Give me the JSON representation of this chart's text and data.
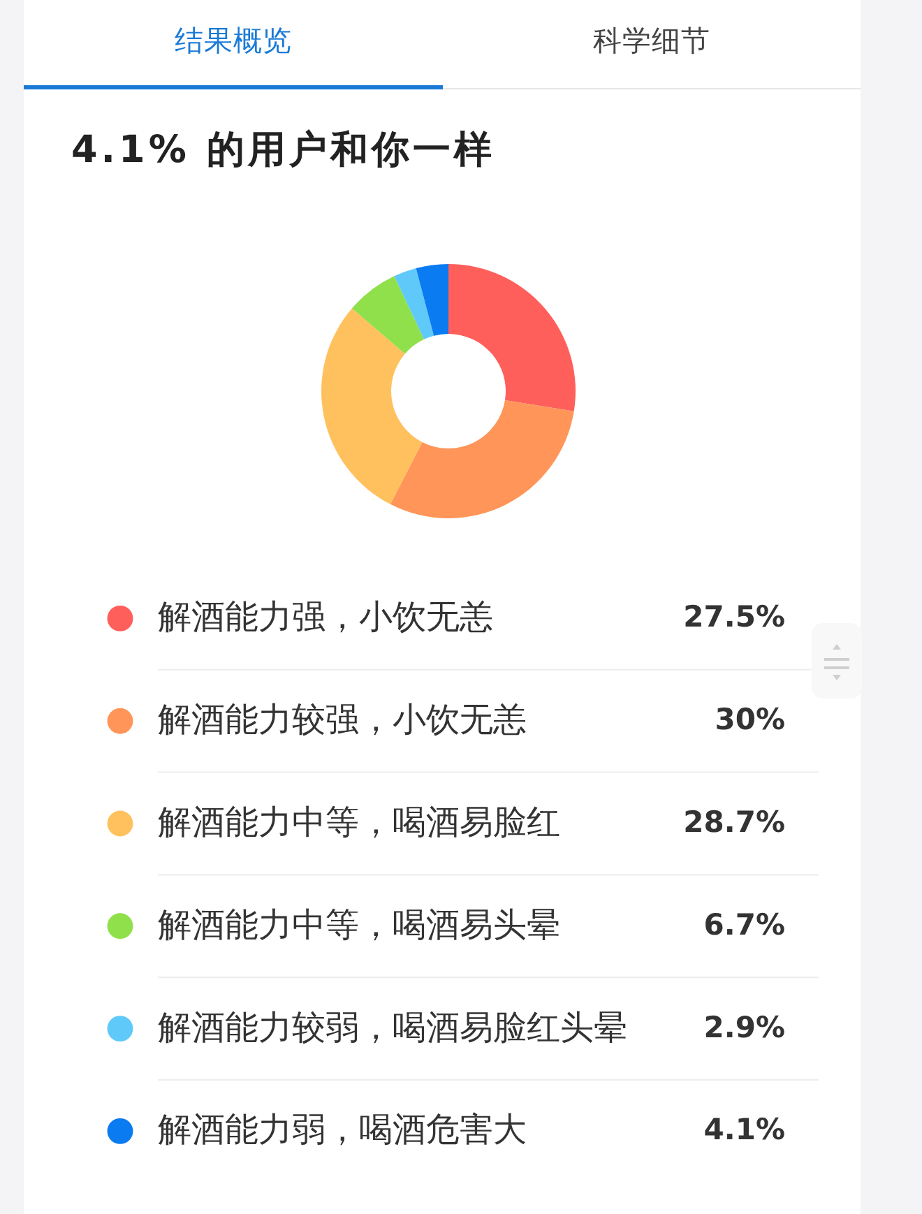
{
  "chart_data": {
    "type": "donut",
    "title": "4.1% 的用户和你一样",
    "annotations": [
      "结果概览",
      "科学细节"
    ],
    "categories": [
      "解酒能力强，小饮无恙",
      "解酒能力较强，小饮无恙",
      "解酒能力中等，喝酒易脸红",
      "解酒能力中等，喝酒易头晕",
      "解酒能力较弱，喝酒易脸红头晕",
      "解酒能力弱，喝酒危害大"
    ],
    "values": [
      27.5,
      30,
      28.7,
      6.7,
      2.9,
      4.1
    ],
    "value_labels": [
      "27.5%",
      "30%",
      "28.7%",
      "6.7%",
      "2.9%",
      "4.1%"
    ],
    "colors": [
      "#ff5f5a",
      "#ff9558",
      "#ffc15e",
      "#8fe04a",
      "#5fc9fa",
      "#0a7bf0"
    ],
    "legend": "bottom"
  }
}
